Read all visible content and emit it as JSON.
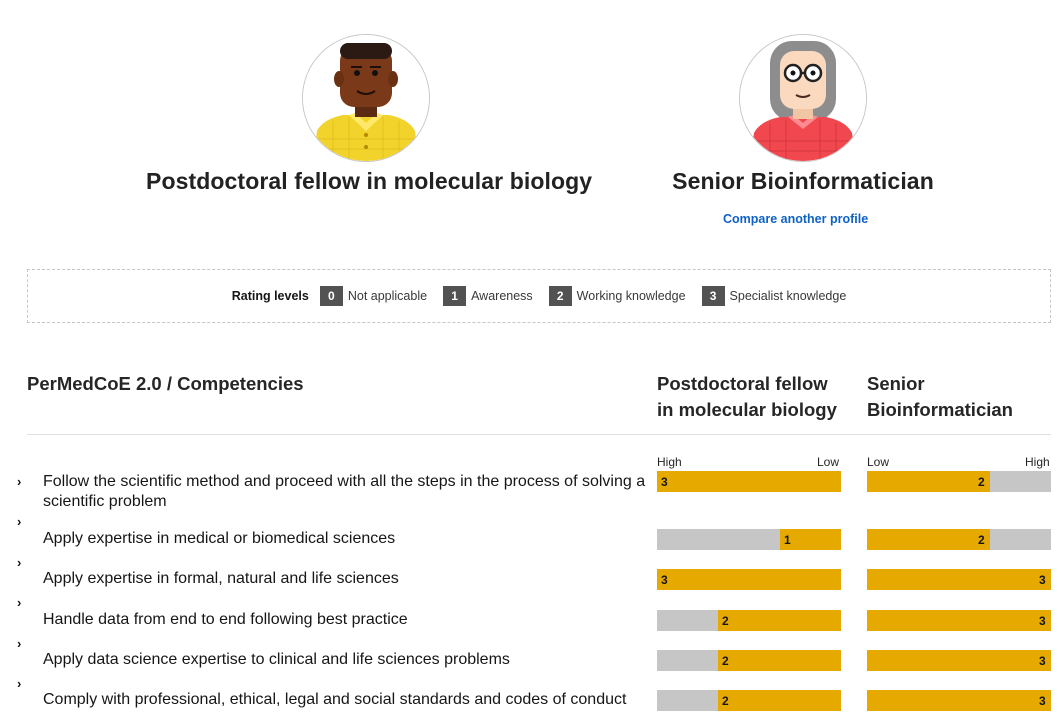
{
  "profiles": [
    {
      "title": "Postdoctoral fellow in molecular biology"
    },
    {
      "title": "Senior Bioinformatician"
    }
  ],
  "compare_link": "Compare another profile",
  "legend": {
    "title": "Rating levels",
    "levels": [
      {
        "value": "0",
        "label": "Not applicable"
      },
      {
        "value": "1",
        "label": "Awareness"
      },
      {
        "value": "2",
        "label": "Working knowledge"
      },
      {
        "value": "3",
        "label": "Specialist knowledge"
      }
    ]
  },
  "table": {
    "heading": "PerMedCoE 2.0 / Competencies",
    "col1_line1": "Postdoctoral fellow",
    "col1_line2": "in molecular biology",
    "col2_line1": "Senior",
    "col2_line2": "Bioinformatician",
    "col1_scale_left": "High",
    "col1_scale_right": "Low",
    "col2_scale_left": "Low",
    "col2_scale_right": "High",
    "max_level": 3,
    "colors": {
      "fill": "#e5a900",
      "track": "#c6c6c6",
      "badge": "#525252",
      "link": "#0f62c4"
    },
    "rows": [
      {
        "label": "Follow the scientific method and proceed with all the steps in the process of solving a scientific problem",
        "postdoc": 3,
        "bioinf": 2
      },
      {
        "label": "Apply expertise in medical or biomedical sciences",
        "postdoc": 1,
        "bioinf": 2
      },
      {
        "label": "Apply expertise in formal, natural and life sciences",
        "postdoc": 3,
        "bioinf": 3
      },
      {
        "label": "Handle data from end to end following best practice",
        "postdoc": 2,
        "bioinf": 3
      },
      {
        "label": "Apply data science expertise to clinical and life sciences problems",
        "postdoc": 2,
        "bioinf": 3
      },
      {
        "label": "Comply with professional, ethical, legal and social standards and codes of conduct",
        "postdoc": 2,
        "bioinf": 3
      }
    ]
  }
}
